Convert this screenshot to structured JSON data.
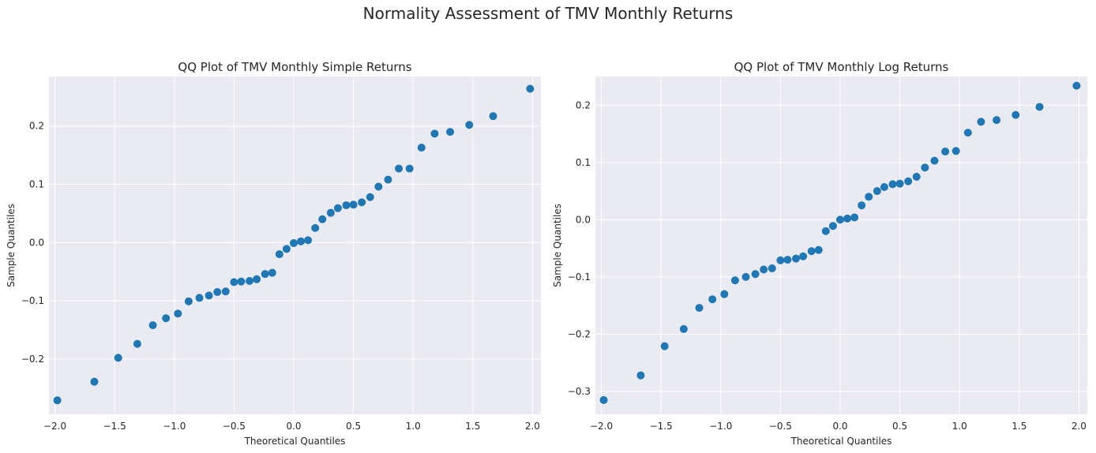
{
  "suptitle": "Normality Assessment of TMV Monthly Returns",
  "colors": {
    "plot_background": "#eaeaf2",
    "grid": "#ffffff",
    "marker": "#1f77b4",
    "text": "#262626"
  },
  "chart_data": [
    {
      "type": "scatter",
      "title": "QQ Plot of TMV Monthly Simple Returns",
      "xlabel": "Theoretical Quantiles",
      "ylabel": "Sample Quantiles",
      "xlim": [
        -2.05,
        2.07
      ],
      "ylim": [
        -0.295,
        0.285
      ],
      "xticks": [
        -2.0,
        -1.5,
        -1.0,
        -0.5,
        0.0,
        0.5,
        1.0,
        1.5,
        2.0
      ],
      "xtick_labels": [
        "−2.0",
        "−1.5",
        "−1.0",
        "−0.5",
        "0.0",
        "0.5",
        "1.0",
        "1.5",
        "2.0"
      ],
      "yticks": [
        -0.2,
        -0.1,
        0.0,
        0.1,
        0.2
      ],
      "ytick_labels": [
        "−0.2",
        "−0.1",
        "0.0",
        "0.1",
        "0.2"
      ],
      "grid": true,
      "x": [
        -1.98,
        -1.67,
        -1.47,
        -1.31,
        -1.18,
        -1.07,
        -0.97,
        -0.88,
        -0.79,
        -0.71,
        -0.64,
        -0.57,
        -0.5,
        -0.44,
        -0.37,
        -0.31,
        -0.24,
        -0.18,
        -0.12,
        -0.06,
        0.0,
        0.06,
        0.12,
        0.18,
        0.24,
        0.31,
        0.37,
        0.44,
        0.5,
        0.57,
        0.64,
        0.71,
        0.79,
        0.88,
        0.97,
        1.07,
        1.18,
        1.31,
        1.47,
        1.67,
        1.98
      ],
      "y": [
        -0.271,
        -0.239,
        -0.198,
        -0.174,
        -0.142,
        -0.13,
        -0.122,
        -0.101,
        -0.095,
        -0.091,
        -0.085,
        -0.084,
        -0.068,
        -0.067,
        -0.066,
        -0.063,
        -0.054,
        -0.052,
        -0.02,
        -0.011,
        -0.001,
        0.002,
        0.004,
        0.025,
        0.04,
        0.051,
        0.059,
        0.064,
        0.065,
        0.069,
        0.078,
        0.096,
        0.108,
        0.127,
        0.127,
        0.163,
        0.187,
        0.19,
        0.202,
        0.217,
        0.264
      ]
    },
    {
      "type": "scatter",
      "title": "QQ Plot of TMV Monthly Log Returns",
      "xlabel": "Theoretical Quantiles",
      "ylabel": "Sample Quantiles",
      "xlim": [
        -2.05,
        2.07
      ],
      "ylim": [
        -0.34,
        0.25
      ],
      "xticks": [
        -2.0,
        -1.5,
        -1.0,
        -0.5,
        0.0,
        0.5,
        1.0,
        1.5,
        2.0
      ],
      "xtick_labels": [
        "−2.0",
        "−1.5",
        "−1.0",
        "−0.5",
        "0.0",
        "0.5",
        "1.0",
        "1.5",
        "2.0"
      ],
      "yticks": [
        -0.3,
        -0.2,
        -0.1,
        0.0,
        0.1,
        0.2
      ],
      "ytick_labels": [
        "−0.3",
        "−0.2",
        "−0.1",
        "0.0",
        "0.1",
        "0.2"
      ],
      "grid": true,
      "x": [
        -1.98,
        -1.67,
        -1.47,
        -1.31,
        -1.18,
        -1.07,
        -0.97,
        -0.88,
        -0.79,
        -0.71,
        -0.64,
        -0.57,
        -0.5,
        -0.44,
        -0.37,
        -0.31,
        -0.24,
        -0.18,
        -0.12,
        -0.06,
        0.0,
        0.06,
        0.12,
        0.18,
        0.24,
        0.31,
        0.37,
        0.44,
        0.5,
        0.57,
        0.64,
        0.71,
        0.79,
        0.88,
        0.97,
        1.07,
        1.18,
        1.31,
        1.47,
        1.67,
        1.98
      ],
      "y": [
        -0.315,
        -0.272,
        -0.221,
        -0.191,
        -0.154,
        -0.139,
        -0.13,
        -0.106,
        -0.1,
        -0.095,
        -0.087,
        -0.085,
        -0.071,
        -0.07,
        -0.068,
        -0.064,
        -0.055,
        -0.053,
        -0.02,
        -0.011,
        0.0,
        0.002,
        0.004,
        0.025,
        0.04,
        0.05,
        0.057,
        0.062,
        0.063,
        0.067,
        0.075,
        0.091,
        0.103,
        0.119,
        0.12,
        0.152,
        0.171,
        0.174,
        0.183,
        0.197,
        0.234
      ]
    }
  ]
}
